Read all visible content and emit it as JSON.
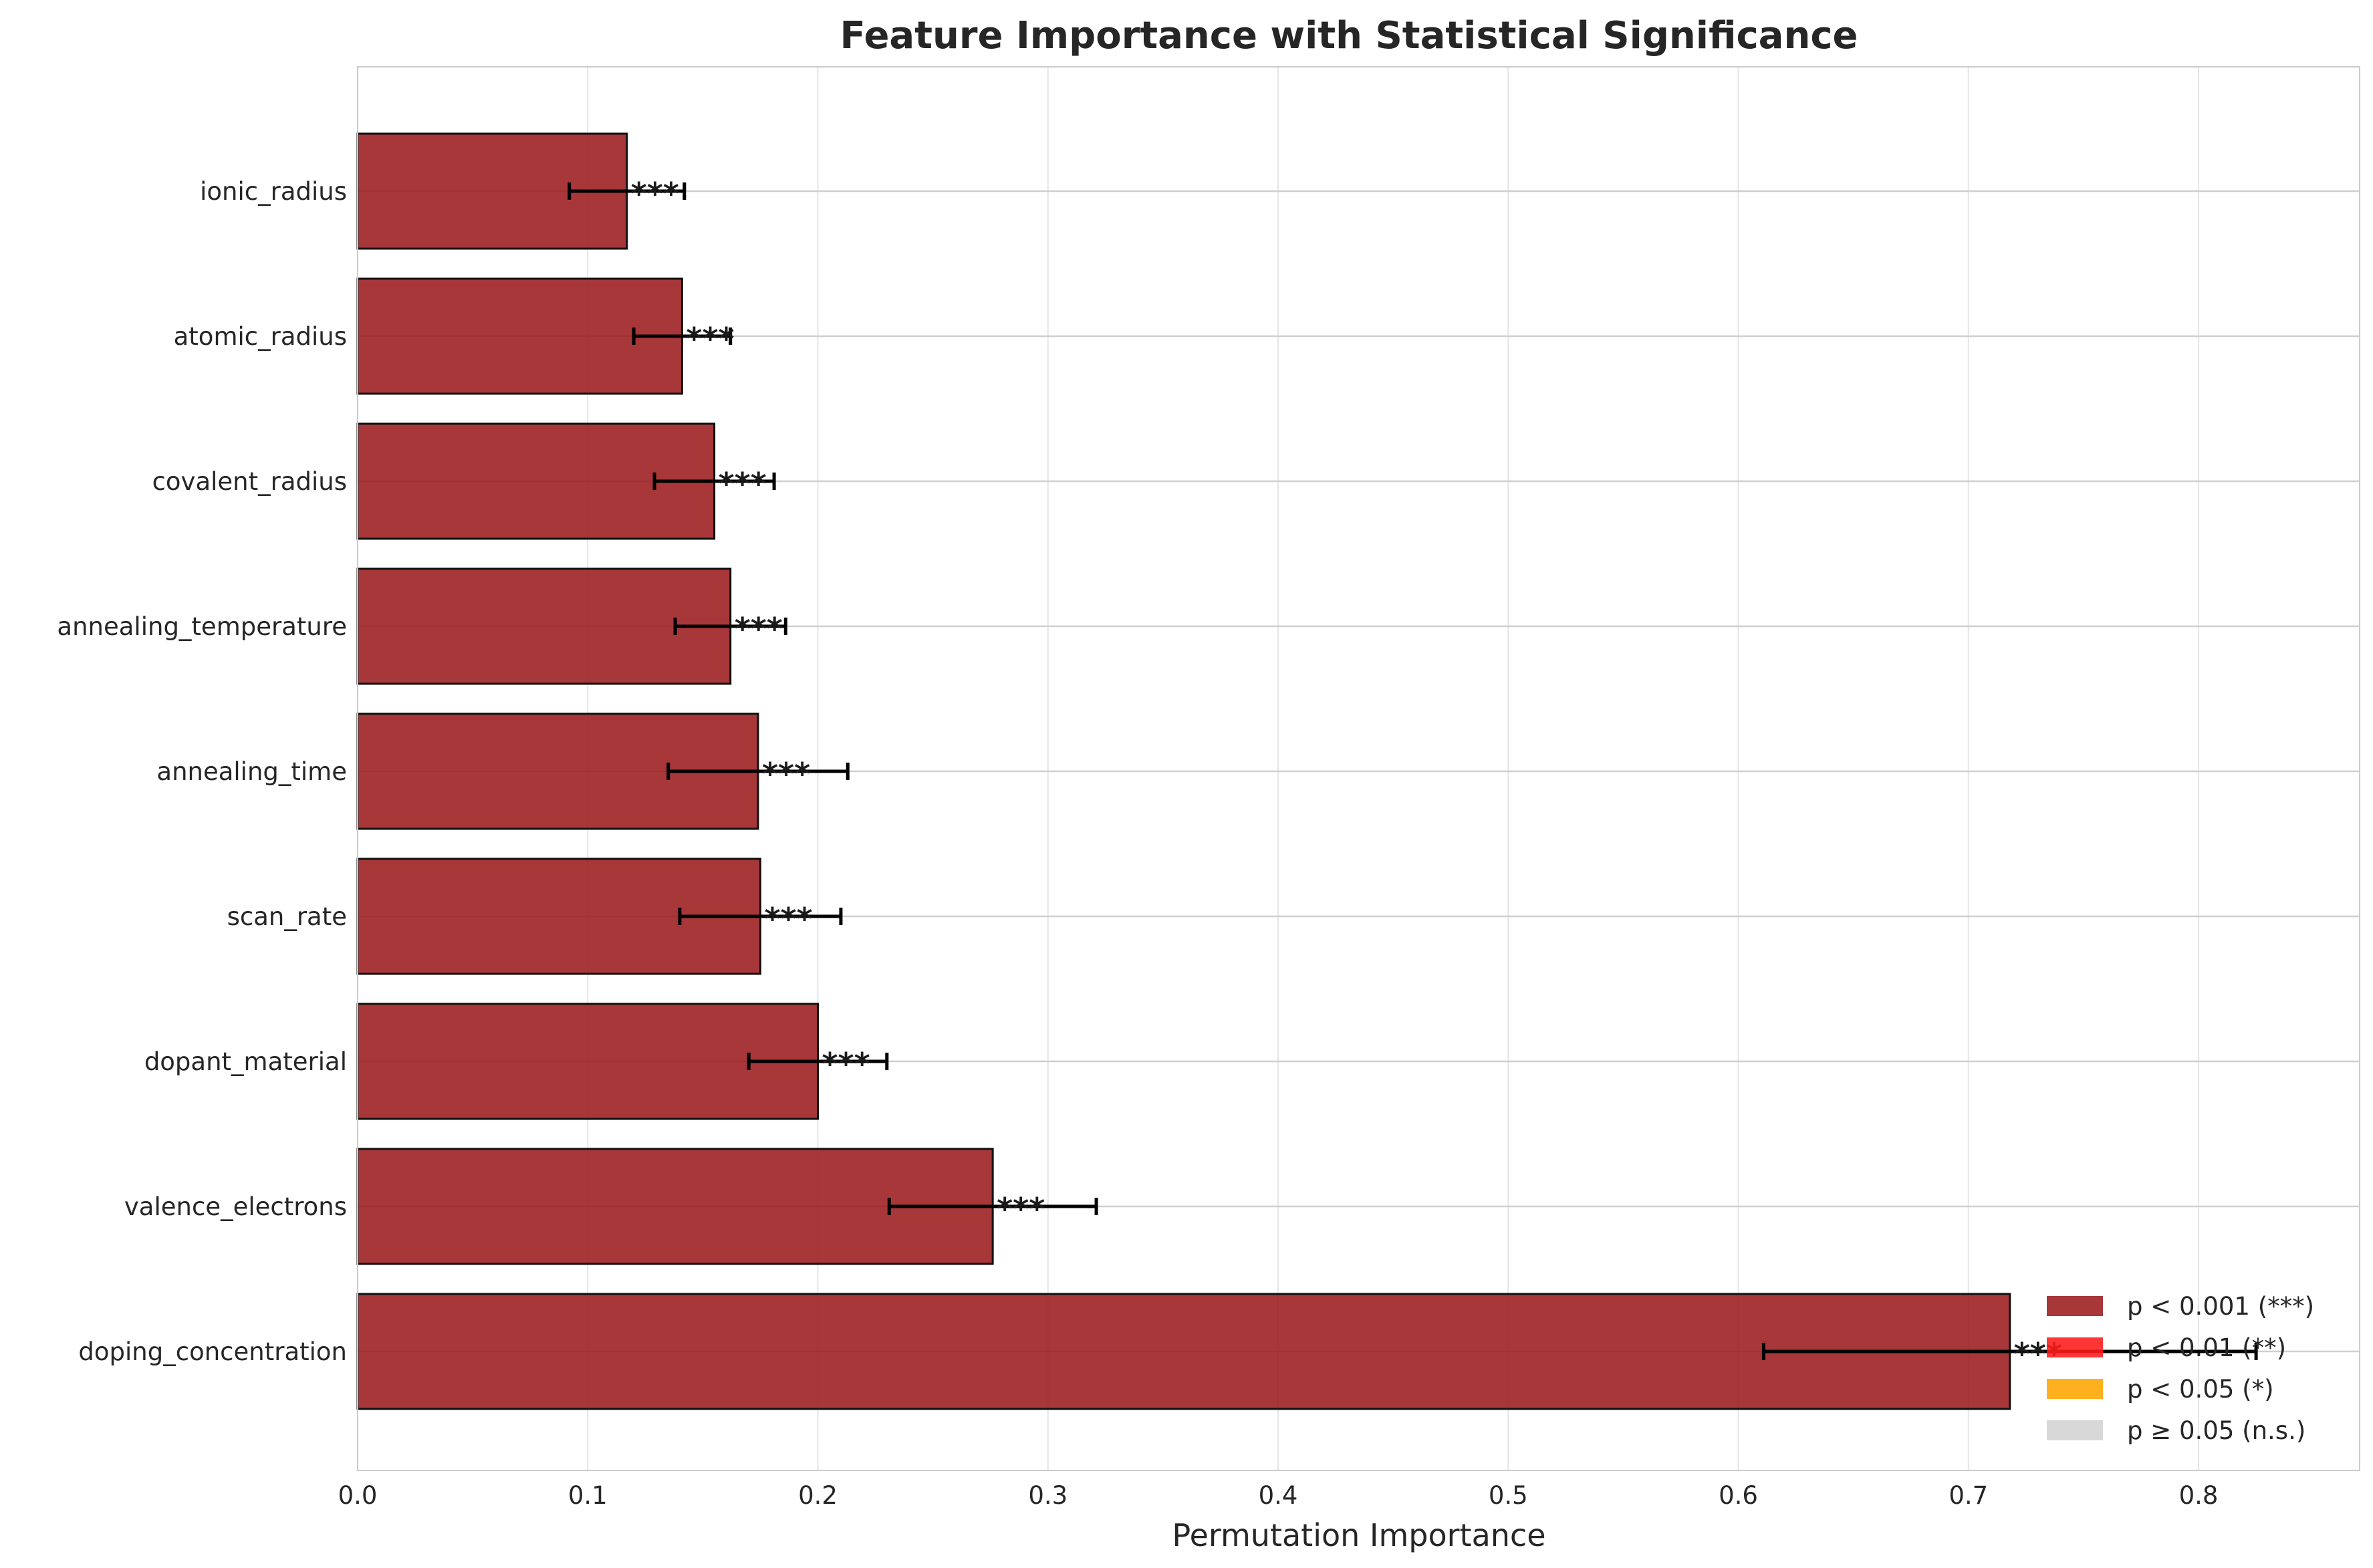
{
  "chart_data": {
    "type": "bar",
    "orientation": "horizontal",
    "title": "Feature Importance with Statistical Significance",
    "xlabel": "Permutation Importance",
    "ylabel": "",
    "xlim": [
      0,
      0.87
    ],
    "xticks": [
      "0.0",
      "0.1",
      "0.2",
      "0.3",
      "0.4",
      "0.5",
      "0.6",
      "0.7",
      "0.8"
    ],
    "grid": true,
    "categories": [
      "doping_concentration",
      "valence_electrons",
      "dopant_material",
      "scan_rate",
      "annealing_time",
      "annealing_temperature",
      "covalent_radius",
      "atomic_radius",
      "ionic_radius"
    ],
    "values": [
      0.718,
      0.276,
      0.2,
      0.175,
      0.174,
      0.162,
      0.155,
      0.141,
      0.117
    ],
    "errors": [
      0.107,
      0.045,
      0.03,
      0.035,
      0.039,
      0.024,
      0.026,
      0.021,
      0.025
    ],
    "significance": [
      "***",
      "***",
      "***",
      "***",
      "***",
      "***",
      "***",
      "***",
      "***"
    ],
    "bar_color": "#9b1b1e",
    "legend": {
      "placement": "lower right",
      "entries": [
        {
          "label": "p < 0.001 (***)",
          "color": "#9b1b1e"
        },
        {
          "label": "p < 0.01 (**)",
          "color": "#ff1a1a"
        },
        {
          "label": "p < 0.05 (*)",
          "color": "#ffa500"
        },
        {
          "label": "p ≥ 0.05 (n.s.)",
          "color": "#d3d3d3"
        }
      ]
    }
  }
}
